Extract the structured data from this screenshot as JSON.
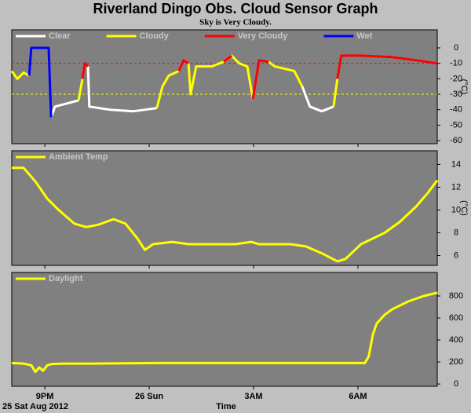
{
  "title": "Riverland Dingo Obs. Cloud Sensor Graph",
  "subtitle": "Sky is Very Cloudy.",
  "date_label": "25 Sat Aug 2012",
  "x_axis": {
    "label": "Time",
    "xlim": [
      20.05,
      32.28
    ],
    "xticks": [
      {
        "value": 21,
        "label": "9PM"
      },
      {
        "value": 24,
        "label": "26 Sun"
      },
      {
        "value": 27,
        "label": "3AM"
      },
      {
        "value": 30,
        "label": "6AM"
      }
    ]
  },
  "chart_data": [
    {
      "type": "line",
      "ylabel": "(°C)",
      "ylim": [
        -62,
        11.7
      ],
      "yticks": [
        0,
        -10,
        -20,
        -30,
        -40,
        -50,
        -60
      ],
      "thresholds": [
        {
          "value": -10,
          "color": "#ff0000"
        },
        {
          "value": -30,
          "color": "#ffff00"
        }
      ],
      "x": [
        20.05,
        20.21,
        20.39,
        20.55,
        20.61,
        21.11,
        21.18,
        21.29,
        21.63,
        21.97,
        22.08,
        22.15,
        22.24,
        22.28,
        22.87,
        23.55,
        24.22,
        24.38,
        24.56,
        24.85,
        24.99,
        25.13,
        25.19,
        25.35,
        25.8,
        26.14,
        26.37,
        26.59,
        26.82,
        26.98,
        27.16,
        27.43,
        27.61,
        28.17,
        28.4,
        28.62,
        28.96,
        29.3,
        29.41,
        29.52,
        30.09,
        30.99,
        31.67,
        32.28
      ],
      "series": [
        {
          "name": "Clear",
          "color": "#ffffff",
          "values": [
            null,
            null,
            null,
            null,
            null,
            null,
            -45,
            -38,
            -36,
            -34,
            null,
            null,
            -12,
            -38,
            -40,
            -41,
            -39,
            null,
            null,
            null,
            null,
            null,
            null,
            null,
            null,
            null,
            null,
            null,
            null,
            null,
            null,
            null,
            null,
            null,
            -25,
            -38,
            -41,
            -38,
            null,
            null,
            null,
            null,
            null,
            null
          ]
        },
        {
          "name": "Cloudy",
          "color": "#ffff00",
          "values": [
            -15,
            -20,
            -16,
            -18,
            null,
            null,
            null,
            null,
            null,
            -34,
            -20,
            null,
            null,
            null,
            null,
            null,
            -39,
            -25,
            -18,
            -15,
            null,
            -10,
            -30,
            -12,
            -12,
            -9,
            -5,
            -10,
            -12,
            -33,
            null,
            -9,
            -12,
            -15,
            -25,
            null,
            null,
            -38,
            -20,
            null,
            null,
            null,
            null,
            null
          ]
        },
        {
          "name": "Very Cloudy",
          "color": "#ff0000",
          "values": [
            null,
            null,
            null,
            null,
            null,
            null,
            null,
            null,
            null,
            null,
            -20,
            -10,
            -12,
            null,
            null,
            null,
            null,
            null,
            null,
            -15,
            -8,
            -10,
            null,
            null,
            null,
            -9,
            -5,
            null,
            null,
            -33,
            -8,
            -9,
            null,
            null,
            null,
            null,
            null,
            null,
            -20,
            -5,
            -5,
            -6,
            -8,
            -10
          ]
        },
        {
          "name": "Wet",
          "color": "#0000ff",
          "values": [
            null,
            null,
            null,
            -18,
            0,
            0,
            -45,
            null,
            null,
            null,
            null,
            null,
            null,
            null,
            null,
            null,
            null,
            null,
            null,
            null,
            null,
            null,
            null,
            null,
            null,
            null,
            null,
            null,
            null,
            null,
            null,
            null,
            null,
            null,
            null,
            null,
            null,
            null,
            null,
            null,
            null,
            null,
            null,
            null
          ]
        }
      ]
    },
    {
      "type": "line",
      "ylabel": "(°C)",
      "ylim": [
        5.14,
        15.2
      ],
      "yticks": [
        6,
        8,
        10,
        12,
        14
      ],
      "x": [
        20.05,
        20.39,
        20.73,
        21.07,
        21.4,
        21.85,
        22.19,
        22.53,
        22.98,
        23.32,
        23.66,
        23.88,
        24.11,
        24.67,
        25.13,
        26.48,
        26.93,
        27.16,
        28.06,
        28.51,
        28.96,
        29.41,
        29.64,
        30.09,
        30.77,
        31.22,
        31.67,
        32.01,
        32.28
      ],
      "series": [
        {
          "name": "Ambient Temp",
          "color": "#ffff00",
          "values": [
            13.7,
            13.7,
            12.5,
            11,
            10,
            8.8,
            8.5,
            8.7,
            9.2,
            8.8,
            7.5,
            6.5,
            7,
            7.2,
            7.0,
            7.0,
            7.2,
            7.0,
            7.0,
            6.8,
            6.2,
            5.5,
            5.7,
            7,
            8,
            9,
            10.3,
            11.5,
            12.6
          ]
        }
      ]
    },
    {
      "type": "line",
      "ylim": [
        -21,
        1014
      ],
      "yticks": [
        0,
        200,
        400,
        600,
        800
      ],
      "x": [
        20.05,
        20.39,
        20.61,
        20.73,
        20.84,
        20.95,
        21.07,
        21.18,
        21.52,
        22.42,
        24.22,
        26.48,
        28.73,
        30.2,
        30.31,
        30.43,
        30.54,
        30.77,
        30.99,
        31.44,
        31.89,
        32.28
      ],
      "series": [
        {
          "name": "Daylight",
          "color": "#ffff00",
          "values": [
            190,
            185,
            170,
            110,
            150,
            120,
            170,
            180,
            185,
            185,
            190,
            190,
            190,
            190,
            250,
            450,
            550,
            630,
            680,
            750,
            800,
            830
          ]
        }
      ]
    }
  ]
}
